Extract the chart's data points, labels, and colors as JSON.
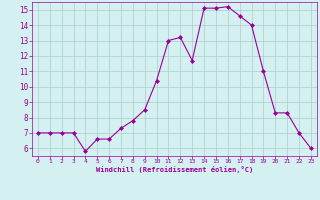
{
  "x": [
    0,
    1,
    2,
    3,
    4,
    5,
    6,
    7,
    8,
    9,
    10,
    11,
    12,
    13,
    14,
    15,
    16,
    17,
    18,
    19,
    20,
    21,
    22,
    23
  ],
  "y": [
    7.0,
    7.0,
    7.0,
    7.0,
    5.8,
    6.6,
    6.6,
    7.3,
    7.8,
    8.5,
    10.4,
    13.0,
    13.2,
    11.7,
    15.1,
    15.1,
    15.2,
    14.6,
    14.0,
    11.0,
    8.3,
    8.3,
    7.0,
    6.0
  ],
  "line_color": "#990099",
  "marker": "D",
  "marker_size": 2.0,
  "bg_color": "#d5f0f0",
  "grid_color": "#aacccc",
  "xlabel": "Windchill (Refroidissement éolien,°C)",
  "xlabel_color": "#990099",
  "tick_color": "#990099",
  "ylim": [
    5.5,
    15.5
  ],
  "xlim": [
    -0.5,
    23.5
  ],
  "yticks": [
    6,
    7,
    8,
    9,
    10,
    11,
    12,
    13,
    14,
    15
  ],
  "xticks": [
    0,
    1,
    2,
    3,
    4,
    5,
    6,
    7,
    8,
    9,
    10,
    11,
    12,
    13,
    14,
    15,
    16,
    17,
    18,
    19,
    20,
    21,
    22,
    23
  ]
}
